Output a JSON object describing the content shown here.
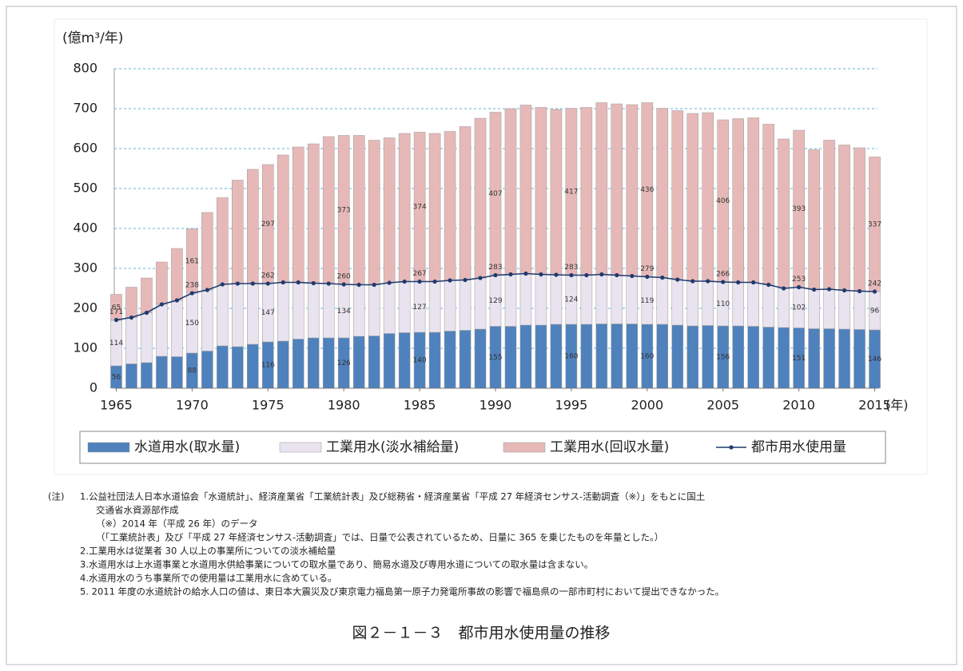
{
  "chart_data": {
    "type": "bar",
    "stacked": true,
    "y_title": "(億m³/年)",
    "x_unit": "(年)",
    "x": [
      1965,
      1966,
      1967,
      1968,
      1969,
      1970,
      1971,
      1972,
      1973,
      1974,
      1975,
      1976,
      1977,
      1978,
      1979,
      1980,
      1981,
      1982,
      1983,
      1984,
      1985,
      1986,
      1987,
      1988,
      1989,
      1990,
      1991,
      1992,
      1993,
      1994,
      1995,
      1996,
      1997,
      1998,
      1999,
      2000,
      2001,
      2002,
      2003,
      2004,
      2005,
      2006,
      2007,
      2008,
      2009,
      2010,
      2011,
      2012,
      2013,
      2014,
      2015
    ],
    "xlim": [
      1964.5,
      2015.5
    ],
    "xticks": [
      1965,
      1970,
      1975,
      1980,
      1985,
      1990,
      1995,
      2000,
      2005,
      2010,
      2015
    ],
    "ylim": [
      0,
      800
    ],
    "yticks": [
      0,
      100,
      200,
      300,
      400,
      500,
      600,
      700,
      800
    ],
    "grid": true,
    "series": [
      {
        "name": "水道用水(取水量)",
        "type": "bar",
        "color": "#4f81bd",
        "values": [
          56,
          61,
          64,
          80,
          79,
          88,
          93,
          106,
          104,
          110,
          116,
          118,
          123,
          126,
          126,
          126,
          130,
          131,
          137,
          139,
          140,
          140,
          143,
          145,
          148,
          155,
          155,
          158,
          158,
          160,
          160,
          160,
          161,
          161,
          161,
          160,
          160,
          158,
          156,
          157,
          156,
          156,
          155,
          153,
          152,
          151,
          149,
          149,
          148,
          147,
          146
        ],
        "value_labels": [
          "56",
          null,
          null,
          null,
          null,
          "88",
          null,
          null,
          null,
          null,
          "116",
          null,
          null,
          null,
          null,
          "126",
          null,
          null,
          null,
          null,
          "140",
          null,
          null,
          null,
          null,
          "155",
          null,
          null,
          null,
          null,
          "160",
          null,
          null,
          null,
          null,
          "160",
          null,
          null,
          null,
          null,
          "156",
          null,
          null,
          null,
          null,
          "151",
          null,
          null,
          null,
          null,
          "146"
        ]
      },
      {
        "name": "工業用水(淡水補給量)",
        "type": "bar",
        "color": "#e8e3ef",
        "values": [
          114,
          116,
          125,
          130,
          141,
          150,
          153,
          154,
          158,
          152,
          147,
          147,
          142,
          137,
          136,
          134,
          129,
          128,
          127,
          128,
          127,
          127,
          127,
          126,
          128,
          129,
          130,
          129,
          127,
          124,
          124,
          123,
          124,
          122,
          120,
          119,
          117,
          114,
          112,
          111,
          110,
          109,
          110,
          106,
          98,
          102,
          98,
          99,
          97,
          96,
          96
        ],
        "value_labels": [
          "114",
          null,
          null,
          null,
          null,
          "150",
          null,
          null,
          null,
          null,
          "147",
          null,
          null,
          null,
          null,
          "134",
          null,
          null,
          null,
          null,
          "127",
          null,
          null,
          null,
          null,
          "129",
          null,
          null,
          null,
          null,
          "124",
          null,
          null,
          null,
          null,
          "119",
          null,
          null,
          null,
          null,
          "110",
          null,
          null,
          null,
          null,
          "102",
          null,
          null,
          null,
          null,
          "96"
        ]
      },
      {
        "name": "工業用水(回収水量)",
        "type": "bar",
        "color": "#e6b9b8",
        "values": [
          65,
          76,
          87,
          106,
          130,
          161,
          194,
          217,
          259,
          286,
          297,
          319,
          339,
          349,
          368,
          373,
          374,
          362,
          363,
          371,
          374,
          371,
          373,
          384,
          400,
          407,
          415,
          422,
          418,
          414,
          417,
          420,
          430,
          429,
          429,
          436,
          424,
          423,
          420,
          422,
          406,
          410,
          412,
          402,
          374,
          393,
          350,
          373,
          364,
          359,
          337
        ],
        "value_labels": [
          "65",
          null,
          null,
          null,
          null,
          "161",
          null,
          null,
          null,
          null,
          "297",
          null,
          null,
          null,
          null,
          "373",
          null,
          null,
          null,
          null,
          "374",
          null,
          null,
          null,
          null,
          "407",
          null,
          null,
          null,
          null,
          "417",
          null,
          null,
          null,
          null,
          "436",
          null,
          null,
          null,
          null,
          "406",
          null,
          null,
          null,
          null,
          "393",
          null,
          null,
          null,
          null,
          "337"
        ]
      },
      {
        "name": "都市用水使用量",
        "type": "line",
        "color": "#1f3b6e",
        "values": [
          171,
          177,
          189,
          210,
          220,
          238,
          246,
          260,
          262,
          262,
          262,
          265,
          265,
          263,
          262,
          260,
          259,
          259,
          264,
          267,
          267,
          267,
          270,
          271,
          276,
          283,
          285,
          287,
          285,
          284,
          283,
          283,
          285,
          283,
          281,
          279,
          277,
          272,
          268,
          268,
          266,
          265,
          265,
          259,
          250,
          253,
          247,
          248,
          245,
          243,
          242
        ],
        "value_labels": [
          "171",
          null,
          null,
          null,
          null,
          "238",
          null,
          null,
          null,
          null,
          "262",
          null,
          null,
          null,
          null,
          "260",
          null,
          null,
          null,
          null,
          "267",
          null,
          null,
          null,
          null,
          "283",
          null,
          null,
          null,
          null,
          "283",
          null,
          null,
          null,
          null,
          "279",
          null,
          null,
          null,
          null,
          "266",
          null,
          null,
          null,
          null,
          "253",
          null,
          null,
          null,
          null,
          "242"
        ]
      }
    ]
  },
  "notes": [
    "(注)",
    "1.公益社団法人日本水道協会「水道統計」、経済産業省「工業統計表」及び総務省・経済産業省「平成 27 年経済センサス-活動調査（※）」をもとに国土",
    "交通省水資源部作成",
    "（※）2014 年（平成 26 年）のデータ",
    "（「工業統計表」及び「平成 27 年経済センサス-活動調査」では、日量で公表されているため、日量に 365 を乗じたものを年量とした。）",
    "2.工業用水は従業者 30 人以上の事業所についての淡水補給量",
    "3.水道用水は上水道事業と水道用水供給事業についての取水量であり、簡易水道及び専用水道についての取水量は含まない。",
    "4.水道用水のうち事業所での使用量は工業用水に含めている。",
    "5. 2011 年度の水道統計の給水人口の値は、東日本大震災及び東京電力福島第一原子力発電所事故の影響で福島県の一部市町村において提出できなかった。"
  ],
  "caption": "図２－１－３　都市用水使用量の推移"
}
